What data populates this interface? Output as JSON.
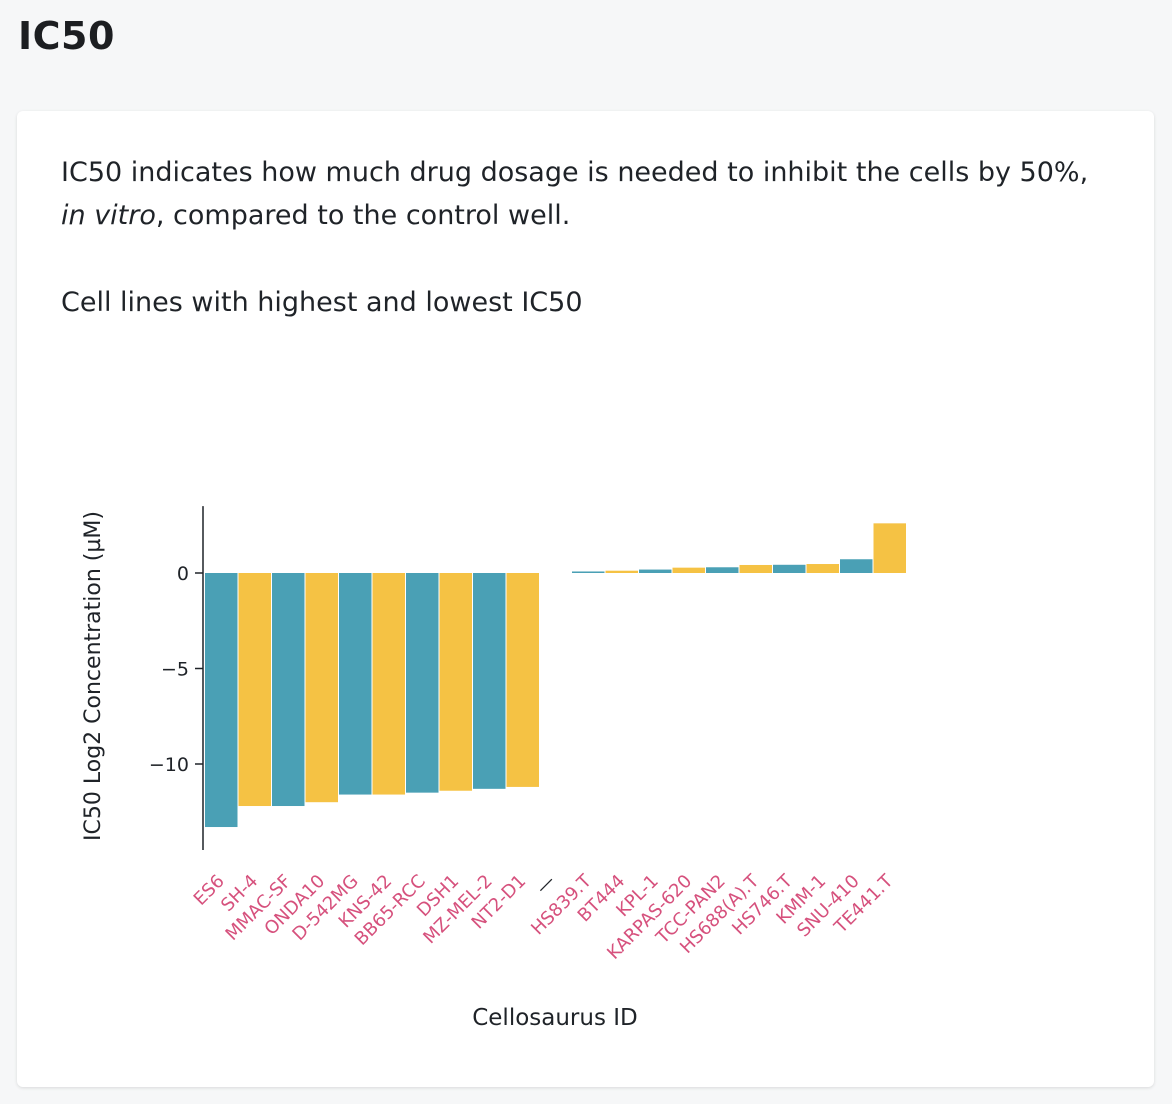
{
  "page": {
    "title": "IC50",
    "description_pre": "IC50 indicates how much drug dosage is needed to inhibit the cells by 50%, ",
    "description_em": "in vitro",
    "description_post": ", compared to the control well.",
    "subtitle": "Cell lines with highest and lowest IC50"
  },
  "chart_data": {
    "type": "bar",
    "xlabel": "Cellosaurus ID",
    "ylabel": "IC50 Log2 Concentration (µM)",
    "ylim": [
      -14.5,
      3.5
    ],
    "yticks": [
      0,
      -5,
      -10
    ],
    "ytick_labels": [
      "0",
      "−5",
      "−10"
    ],
    "gap_label": "—",
    "colors": [
      "#4aa0b5",
      "#f5c244"
    ],
    "tick_label_color": "#d6517d",
    "groups": [
      {
        "categories": [
          "ES6",
          "SH-4",
          "MMAC-SF",
          "ONDA10",
          "D-542MG",
          "KNS-42",
          "BB65-RCC",
          "DSH1",
          "MZ-MEL-2",
          "NT2-D1"
        ],
        "values": [
          -13.3,
          -12.2,
          -12.2,
          -12.0,
          -11.6,
          -11.6,
          -11.5,
          -11.4,
          -11.3,
          -11.2
        ]
      },
      {
        "categories": [
          "HS839.T",
          "BT444",
          "KPL-1",
          "KARPAS-620",
          "TCC-PAN2",
          "HS688(A).T",
          "HS746.T",
          "KMM-1",
          "SNU-410",
          "TE441.T"
        ],
        "values": [
          0.08,
          0.12,
          0.18,
          0.28,
          0.3,
          0.42,
          0.43,
          0.47,
          0.72,
          2.6
        ]
      }
    ]
  }
}
